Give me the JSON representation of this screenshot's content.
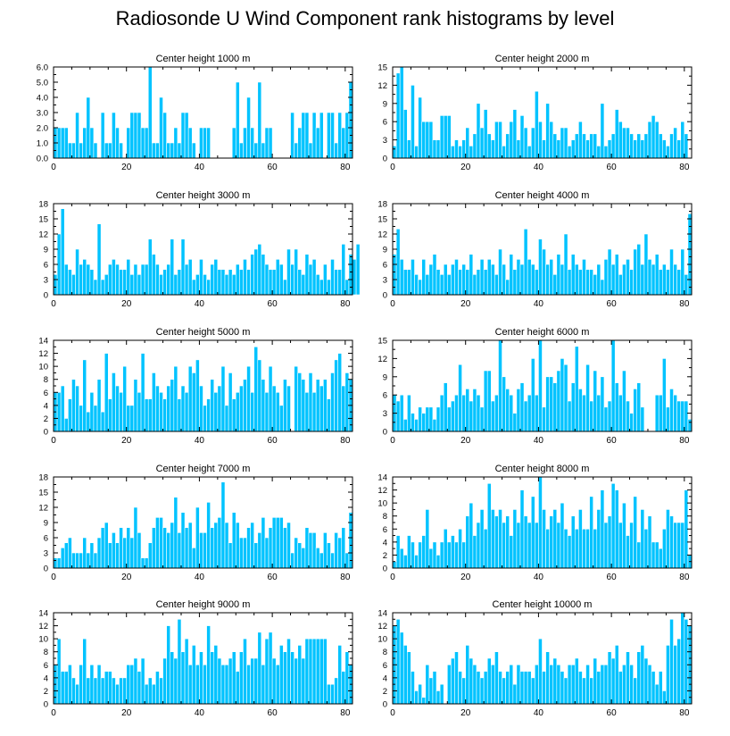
{
  "page_title": "Radiosonde U Wind Component rank histograms by level",
  "colors": {
    "bar": "#00c3ff",
    "bar_edge": "#ffffff",
    "axis": "#000000",
    "background": "#ffffff"
  },
  "chart_data": [
    {
      "type": "bar",
      "title": "Center height 1000 m",
      "x_ticks": [
        0,
        20,
        40,
        60,
        80
      ],
      "xlim": [
        0,
        82
      ],
      "ylim": [
        0,
        6
      ],
      "y_ticks": [
        0,
        1,
        2,
        3,
        4,
        5,
        6
      ],
      "y_tick_labels": [
        "0.0",
        "1.0",
        "2.0",
        "3.0",
        "4.0",
        "5.0",
        "6.0"
      ],
      "values": [
        2,
        2,
        2,
        2,
        1,
        1,
        3,
        1,
        2,
        4,
        2,
        1,
        0,
        3,
        1,
        1,
        3,
        2,
        1,
        0,
        2,
        3,
        3,
        3,
        2,
        2,
        6,
        1,
        1,
        4,
        3,
        1,
        1,
        2,
        1,
        3,
        3,
        2,
        1,
        0,
        2,
        2,
        2,
        0,
        0,
        0,
        0,
        0,
        0,
        2,
        5,
        1,
        2,
        4,
        2,
        1,
        5,
        1,
        2,
        2,
        0,
        0,
        0,
        0,
        0,
        3,
        1,
        2,
        3,
        3,
        1,
        3,
        2,
        3,
        0,
        3,
        3,
        1,
        3,
        2,
        3,
        5
      ]
    },
    {
      "type": "bar",
      "title": "Center height 2000 m",
      "x_ticks": [
        0,
        20,
        40,
        60,
        80
      ],
      "xlim": [
        0,
        82
      ],
      "ylim": [
        0,
        15
      ],
      "y_ticks": [
        0,
        3,
        6,
        9,
        12,
        15
      ],
      "y_tick_labels": [
        "0",
        "3",
        "6",
        "9",
        "12",
        "15"
      ],
      "values": [
        2,
        14,
        15,
        8,
        3,
        12,
        2,
        10,
        6,
        6,
        6,
        3,
        3,
        7,
        7,
        7,
        2,
        3,
        2,
        3,
        5,
        2,
        4,
        9,
        5,
        8,
        4,
        3,
        6,
        6,
        2,
        4,
        6,
        8,
        3,
        7,
        5,
        2,
        5,
        11,
        6,
        3,
        9,
        6,
        4,
        3,
        5,
        5,
        2,
        3,
        4,
        6,
        4,
        3,
        4,
        4,
        2,
        9,
        2,
        3,
        4,
        8,
        6,
        5,
        5,
        4,
        3,
        4,
        3,
        4,
        6,
        7,
        6,
        4,
        3,
        2,
        4,
        5,
        3,
        6,
        4
      ]
    },
    {
      "type": "bar",
      "title": "Center height 3000 m",
      "x_ticks": [
        0,
        20,
        40,
        60,
        80
      ],
      "xlim": [
        0,
        82
      ],
      "ylim": [
        0,
        18
      ],
      "y_ticks": [
        0,
        3,
        6,
        9,
        12,
        15,
        18
      ],
      "y_tick_labels": [
        "0",
        "3",
        "6",
        "9",
        "12",
        "15",
        "18"
      ],
      "values": [
        4,
        12,
        17,
        6,
        5,
        4,
        9,
        6,
        7,
        6,
        5,
        3,
        14,
        3,
        4,
        6,
        7,
        6,
        5,
        5,
        7,
        4,
        6,
        4,
        6,
        6,
        11,
        8,
        6,
        4,
        5,
        6,
        11,
        4,
        5,
        11,
        6,
        7,
        3,
        4,
        7,
        4,
        3,
        6,
        7,
        5,
        5,
        4,
        5,
        4,
        6,
        5,
        7,
        5,
        8,
        9,
        10,
        8,
        6,
        5,
        5,
        7,
        6,
        3,
        9,
        6,
        9,
        5,
        4,
        8,
        6,
        7,
        4,
        3,
        6,
        3,
        7,
        5,
        5,
        10,
        3,
        8,
        7,
        10
      ]
    },
    {
      "type": "bar",
      "title": "Center height 4000 m",
      "x_ticks": [
        0,
        20,
        40,
        60,
        80
      ],
      "xlim": [
        0,
        82
      ],
      "ylim": [
        0,
        18
      ],
      "y_ticks": [
        0,
        3,
        6,
        9,
        12,
        15,
        18
      ],
      "y_tick_labels": [
        "0",
        "3",
        "6",
        "9",
        "12",
        "15",
        "18"
      ],
      "values": [
        8,
        13,
        7,
        5,
        5,
        7,
        4,
        3,
        7,
        4,
        6,
        8,
        5,
        4,
        6,
        4,
        6,
        7,
        5,
        6,
        5,
        8,
        4,
        5,
        7,
        5,
        7,
        6,
        4,
        9,
        6,
        3,
        8,
        5,
        7,
        6,
        13,
        7,
        6,
        5,
        11,
        9,
        6,
        7,
        4,
        8,
        6,
        12,
        5,
        8,
        6,
        5,
        7,
        5,
        5,
        4,
        6,
        3,
        7,
        9,
        6,
        8,
        4,
        6,
        7,
        5,
        9,
        10,
        6,
        12,
        7,
        6,
        8,
        5,
        6,
        5,
        9,
        6,
        5,
        9,
        4,
        16
      ]
    },
    {
      "type": "bar",
      "title": "Center height 5000 m",
      "x_ticks": [
        0,
        20,
        40,
        60,
        80
      ],
      "xlim": [
        0,
        82
      ],
      "ylim": [
        0,
        14
      ],
      "y_ticks": [
        0,
        2,
        4,
        6,
        8,
        10,
        12,
        14
      ],
      "y_tick_labels": [
        "0",
        "2",
        "4",
        "6",
        "8",
        "10",
        "12",
        "14"
      ],
      "values": [
        6,
        6,
        7,
        2,
        5,
        8,
        7,
        4,
        11,
        3,
        6,
        4,
        8,
        3,
        12,
        5,
        9,
        7,
        6,
        10,
        4,
        4,
        8,
        6,
        12,
        5,
        5,
        9,
        7,
        6,
        5,
        7,
        8,
        10,
        5,
        7,
        6,
        10,
        9,
        11,
        7,
        4,
        5,
        8,
        6,
        7,
        10,
        4,
        9,
        5,
        6,
        7,
        8,
        10,
        6,
        13,
        11,
        8,
        6,
        10,
        7,
        6,
        4,
        8,
        7,
        0,
        10,
        9,
        8,
        6,
        9,
        6,
        8,
        7,
        8,
        5,
        9,
        11,
        12,
        7,
        9,
        8
      ]
    },
    {
      "type": "bar",
      "title": "Center height 6000 m",
      "x_ticks": [
        0,
        20,
        40,
        60,
        80
      ],
      "xlim": [
        0,
        82
      ],
      "ylim": [
        0,
        15
      ],
      "y_ticks": [
        0,
        3,
        6,
        9,
        12,
        15
      ],
      "y_tick_labels": [
        "0",
        "3",
        "6",
        "9",
        "12",
        "15"
      ],
      "values": [
        6,
        5,
        6,
        2,
        6,
        3,
        2,
        4,
        3,
        4,
        4,
        2,
        4,
        6,
        8,
        4,
        5,
        6,
        11,
        6,
        7,
        5,
        7,
        6,
        4,
        10,
        10,
        5,
        6,
        15,
        9,
        7,
        6,
        3,
        7,
        8,
        5,
        6,
        12,
        6,
        15,
        4,
        9,
        9,
        8,
        10,
        12,
        11,
        5,
        8,
        14,
        7,
        6,
        11,
        5,
        10,
        6,
        9,
        4,
        5,
        15,
        8,
        6,
        10,
        5,
        3,
        7,
        8,
        4,
        0,
        0,
        0,
        6,
        6,
        12,
        4,
        7,
        6,
        5,
        5,
        5,
        2
      ]
    },
    {
      "type": "bar",
      "title": "Center height 7000 m",
      "x_ticks": [
        0,
        20,
        40,
        60,
        80
      ],
      "xlim": [
        0,
        82
      ],
      "ylim": [
        0,
        18
      ],
      "y_ticks": [
        0,
        3,
        6,
        9,
        12,
        15,
        18
      ],
      "y_tick_labels": [
        "0",
        "3",
        "6",
        "9",
        "12",
        "15",
        "18"
      ],
      "values": [
        2,
        2,
        4,
        5,
        6,
        3,
        3,
        3,
        6,
        3,
        5,
        3,
        6,
        8,
        9,
        5,
        7,
        5,
        8,
        6,
        8,
        6,
        12,
        7,
        2,
        2,
        5,
        8,
        10,
        10,
        8,
        7,
        9,
        14,
        7,
        11,
        8,
        9,
        4,
        12,
        7,
        7,
        13,
        8,
        9,
        10,
        17,
        9,
        5,
        11,
        9,
        6,
        6,
        8,
        9,
        5,
        7,
        10,
        6,
        8,
        10,
        10,
        10,
        8,
        9,
        3,
        6,
        5,
        4,
        8,
        7,
        7,
        4,
        3,
        7,
        5,
        3,
        7,
        6,
        8,
        3,
        11
      ]
    },
    {
      "type": "bar",
      "title": "Center height 8000 m",
      "x_ticks": [
        0,
        20,
        40,
        60,
        80
      ],
      "xlim": [
        0,
        82
      ],
      "ylim": [
        0,
        14
      ],
      "y_ticks": [
        0,
        2,
        4,
        6,
        8,
        10,
        12,
        14
      ],
      "y_tick_labels": [
        "0",
        "2",
        "4",
        "6",
        "8",
        "10",
        "12",
        "14"
      ],
      "values": [
        1,
        5,
        3,
        2,
        5,
        4,
        2,
        4,
        5,
        9,
        3,
        4,
        2,
        4,
        6,
        4,
        5,
        4,
        6,
        4,
        8,
        10,
        5,
        7,
        9,
        6,
        13,
        9,
        8,
        9,
        7,
        8,
        5,
        9,
        7,
        12,
        8,
        7,
        11,
        7,
        14,
        9,
        6,
        8,
        9,
        7,
        10,
        6,
        5,
        8,
        6,
        9,
        6,
        6,
        11,
        6,
        9,
        12,
        7,
        8,
        13,
        12,
        7,
        10,
        5,
        7,
        11,
        4,
        9,
        6,
        8,
        4,
        4,
        3,
        6,
        9,
        8,
        7,
        7,
        7,
        12,
        2
      ]
    },
    {
      "type": "bar",
      "title": "Center height 9000 m",
      "x_ticks": [
        0,
        20,
        40,
        60,
        80
      ],
      "xlim": [
        0,
        82
      ],
      "ylim": [
        0,
        14
      ],
      "y_ticks": [
        0,
        2,
        4,
        6,
        8,
        10,
        12,
        14
      ],
      "y_tick_labels": [
        "0",
        "2",
        "4",
        "6",
        "8",
        "10",
        "12",
        "14"
      ],
      "values": [
        6,
        10,
        5,
        5,
        6,
        4,
        3,
        6,
        10,
        4,
        6,
        4,
        6,
        4,
        5,
        5,
        4,
        3,
        4,
        4,
        6,
        6,
        7,
        5,
        7,
        3,
        4,
        3,
        5,
        4,
        7,
        12,
        8,
        7,
        13,
        8,
        10,
        6,
        9,
        6,
        8,
        6,
        12,
        8,
        9,
        7,
        6,
        6,
        7,
        8,
        5,
        8,
        10,
        6,
        7,
        7,
        11,
        6,
        10,
        11,
        7,
        6,
        9,
        8,
        10,
        8,
        7,
        9,
        7,
        10,
        10,
        10,
        10,
        10,
        10,
        3,
        3,
        4,
        9,
        5,
        8,
        6
      ]
    },
    {
      "type": "bar",
      "title": "Center height 10000 m",
      "x_ticks": [
        0,
        20,
        40,
        60,
        80
      ],
      "xlim": [
        0,
        82
      ],
      "ylim": [
        0,
        14
      ],
      "y_ticks": [
        0,
        2,
        4,
        6,
        8,
        10,
        12,
        14
      ],
      "y_tick_labels": [
        "0",
        "2",
        "4",
        "6",
        "8",
        "10",
        "12",
        "14"
      ],
      "values": [
        12,
        13,
        11,
        9,
        8,
        5,
        2,
        3,
        1,
        6,
        4,
        5,
        2,
        3,
        0,
        6,
        7,
        8,
        5,
        4,
        9,
        7,
        6,
        5,
        4,
        5,
        7,
        6,
        8,
        5,
        4,
        5,
        6,
        3,
        6,
        5,
        5,
        5,
        4,
        6,
        10,
        5,
        8,
        6,
        7,
        6,
        5,
        4,
        6,
        6,
        7,
        5,
        4,
        6,
        4,
        7,
        5,
        6,
        6,
        8,
        7,
        9,
        5,
        6,
        8,
        6,
        4,
        8,
        9,
        7,
        6,
        5,
        3,
        5,
        2,
        9,
        13,
        9,
        10,
        14,
        13,
        12
      ]
    }
  ]
}
